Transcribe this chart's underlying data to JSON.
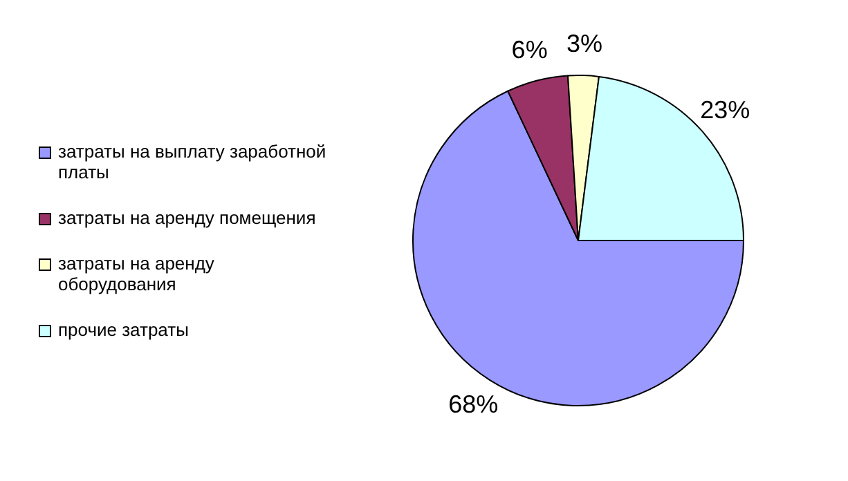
{
  "chart_data": {
    "type": "pie",
    "categories": [
      "затраты на выплату заработной платы",
      "затраты на аренду помещения",
      "затраты на аренду оборудования",
      "прочие затраты"
    ],
    "values": [
      68,
      6,
      3,
      23
    ],
    "colors": [
      "#9999ff",
      "#993366",
      "#ffffcc",
      "#ccffff"
    ],
    "value_labels": [
      "68%",
      "6%",
      "3%",
      "23%"
    ],
    "legend": "left"
  }
}
